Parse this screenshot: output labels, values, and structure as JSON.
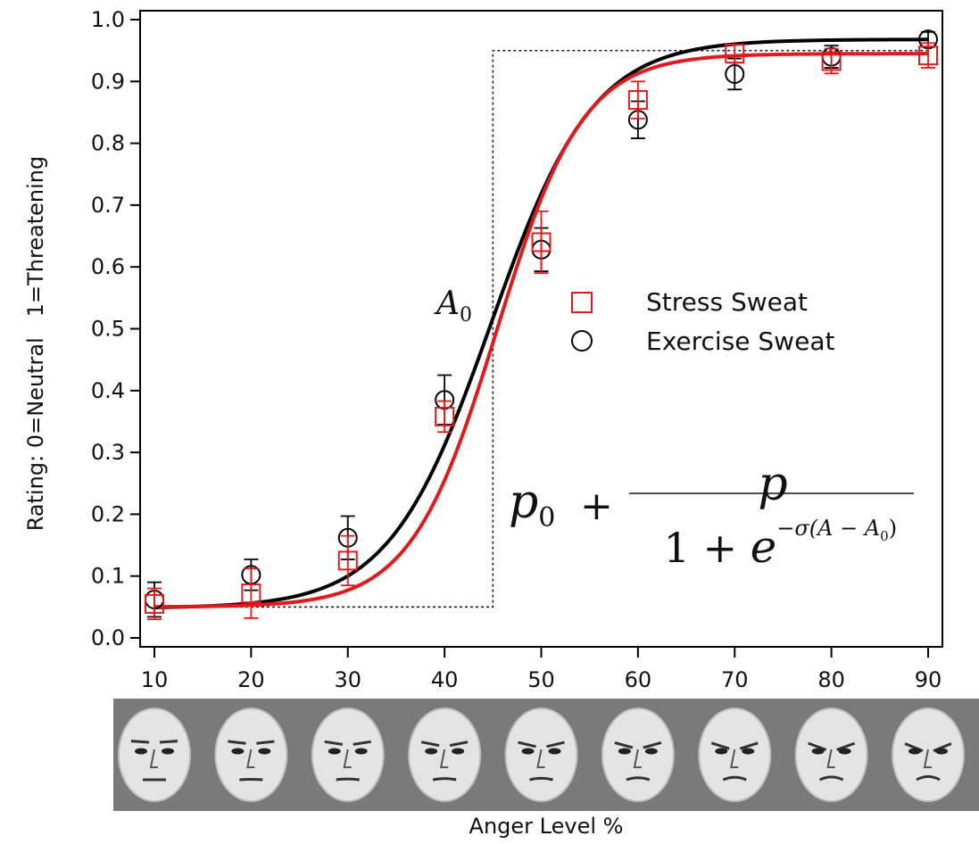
{
  "chart_data": {
    "type": "scatter",
    "xlabel": "Anger Level %",
    "ylabel": "Rating: 0=Neutral   1=Threatening",
    "xlim": [
      9,
      91
    ],
    "ylim": [
      -0.01,
      1.02
    ],
    "x_ticks": [
      "10",
      "20",
      "30",
      "40",
      "50",
      "60",
      "70",
      "80",
      "90"
    ],
    "y_ticks": [
      "0.0",
      "0.1",
      "0.2",
      "0.3",
      "0.4",
      "0.5",
      "0.6",
      "0.7",
      "0.8",
      "0.9",
      "1.0"
    ],
    "grid": false,
    "legend_position": "right-middle",
    "series": [
      {
        "name": "Stress Sweat",
        "marker": "square",
        "color": "#e31a1c",
        "x": [
          10,
          20,
          30,
          40,
          50,
          60,
          70,
          80,
          90
        ],
        "y": [
          0.055,
          0.072,
          0.125,
          0.358,
          0.64,
          0.87,
          0.945,
          0.933,
          0.942
        ],
        "err": [
          0.025,
          0.04,
          0.04,
          0.025,
          0.05,
          0.03,
          0.015,
          0.02,
          0.02
        ],
        "fit": {
          "p0": 0.05,
          "p": 0.895,
          "sigma": 0.225,
          "A0": 45.4
        }
      },
      {
        "name": "Exercise Sweat",
        "marker": "circle",
        "color": "#000000",
        "x": [
          10,
          20,
          30,
          40,
          50,
          60,
          70,
          80,
          90
        ],
        "y": [
          0.062,
          0.102,
          0.162,
          0.385,
          0.628,
          0.838,
          0.912,
          0.94,
          0.968
        ],
        "err": [
          0.028,
          0.025,
          0.035,
          0.04,
          0.035,
          0.03,
          0.025,
          0.018,
          0.012
        ],
        "fit": {
          "p0": 0.048,
          "p": 0.92,
          "sigma": 0.19,
          "A0": 44.8
        }
      }
    ],
    "reference_step": {
      "x_low": 10,
      "y_low": 0.05,
      "x_step": 45,
      "y_high": 0.95,
      "x_high": 90
    },
    "annotation_label": "A",
    "annotation_subscript": "0",
    "equation": {
      "p0": "p",
      "p0_sub": "0",
      "plus": "+",
      "numerator": "p",
      "denominator_prefix": "1 + ",
      "e": "e",
      "exponent": "−σ(A − A",
      "exponent_sub": "0",
      "exponent_close": ")"
    }
  },
  "face_strip": {
    "count": 9,
    "background": "#7a7a7a"
  }
}
